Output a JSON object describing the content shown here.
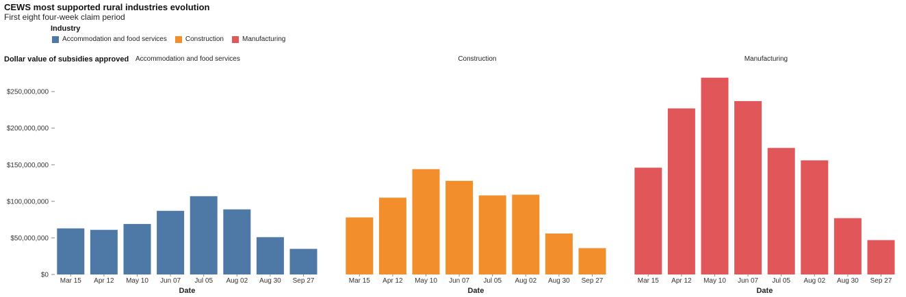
{
  "chart_data": {
    "type": "bar",
    "title": "CEWS most supported rural industries evolution",
    "subtitle": "First eight four-week claim period",
    "ylabel": "Dollar value of subsidies approved",
    "xlabel": "Date",
    "legend_title": "Industry",
    "legend_position": "top-left",
    "ylim": [
      0,
      280000000
    ],
    "yticks": [
      0,
      50000000,
      100000000,
      150000000,
      200000000,
      250000000
    ],
    "ytick_labels": [
      "$0",
      "$50,000,000",
      "$100,000,000",
      "$150,000,000",
      "$200,000,000",
      "$250,000,000"
    ],
    "grid": false,
    "categories": [
      "Mar 15",
      "Apr 12",
      "May 10",
      "Jun 07",
      "Jul 05",
      "Aug 02",
      "Aug 30",
      "Sep 27"
    ],
    "series": [
      {
        "name": "Accommodation and food services",
        "color": "#4e79a7",
        "values": [
          63000000,
          61000000,
          69000000,
          87000000,
          107000000,
          89000000,
          51000000,
          35000000
        ]
      },
      {
        "name": "Construction",
        "color": "#f28e2b",
        "values": [
          78000000,
          105000000,
          144000000,
          128000000,
          108000000,
          109000000,
          56000000,
          36000000
        ]
      },
      {
        "name": "Manufacturing",
        "color": "#e15759",
        "values": [
          146000000,
          227000000,
          269000000,
          237000000,
          173000000,
          156000000,
          77000000,
          47000000
        ]
      }
    ]
  }
}
